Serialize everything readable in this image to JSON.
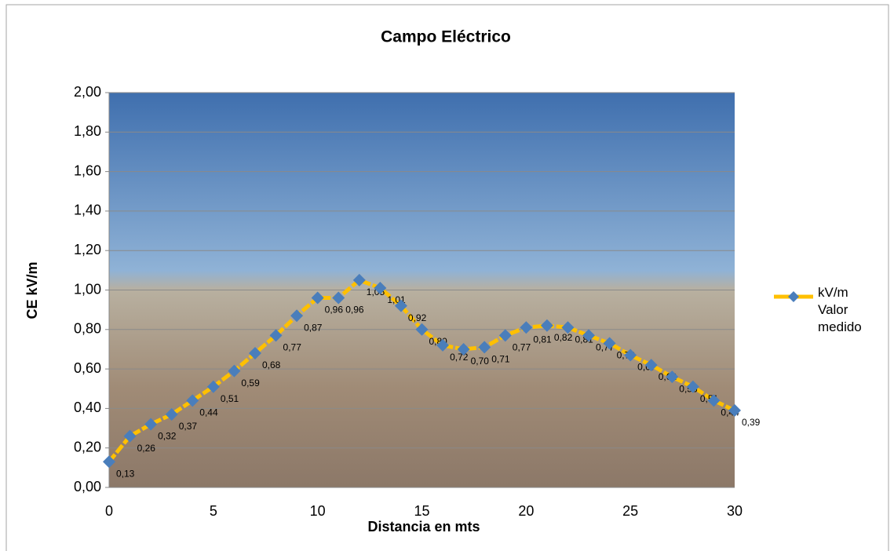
{
  "chart_data": {
    "type": "line",
    "title": "Campo Eléctrico",
    "x_label": "Distancia en mts",
    "y_label": "CE kV/m",
    "x": [
      0,
      1,
      2,
      3,
      4,
      5,
      6,
      7,
      8,
      9,
      10,
      11,
      12,
      13,
      14,
      15,
      16,
      17,
      18,
      19,
      20,
      21,
      22,
      23,
      24,
      25,
      26,
      27,
      28,
      29,
      30
    ],
    "series": [
      {
        "name": "kV/m Valor medido",
        "color": "#FFC000",
        "marker_color": "#4A7EBB",
        "values": [
          0.13,
          0.26,
          0.32,
          0.37,
          0.44,
          0.51,
          0.59,
          0.68,
          0.77,
          0.87,
          0.96,
          0.96,
          1.05,
          1.01,
          0.92,
          0.8,
          0.72,
          0.7,
          0.71,
          0.77,
          0.81,
          0.82,
          0.81,
          0.77,
          0.73,
          0.67,
          0.62,
          0.56,
          0.51,
          0.44,
          0.39
        ],
        "value_labels": [
          "0,13",
          "0,26",
          "0,32",
          "0,37",
          "0,44",
          "0,51",
          "0,59",
          "0,68",
          "0,77",
          "0,87",
          "0,96",
          "0,96",
          "1,05",
          "1,01",
          "0,92",
          "0,80",
          "0,72",
          "0,70",
          "0,71",
          "0,77",
          "0,81",
          "0,82",
          "0,81",
          "0,77",
          "0,73",
          "0,67",
          "0,62",
          "0,56",
          "0,51",
          "0,44",
          "0,39"
        ]
      }
    ],
    "xlim": [
      0,
      30
    ],
    "xticks": [
      0,
      5,
      10,
      15,
      20,
      25,
      30
    ],
    "ylim": [
      0,
      2
    ],
    "yticks": [
      {
        "value": 0,
        "label": "0,00"
      },
      {
        "value": 0.2,
        "label": "0,20"
      },
      {
        "value": 0.4,
        "label": "0,40"
      },
      {
        "value": 0.6,
        "label": "0,60"
      },
      {
        "value": 0.8,
        "label": "0,80"
      },
      {
        "value": 1,
        "label": "1,00"
      },
      {
        "value": 1.2,
        "label": "1,20"
      },
      {
        "value": 1.4,
        "label": "1,40"
      },
      {
        "value": 1.6,
        "label": "1,60"
      },
      {
        "value": 1.8,
        "label": "1,80"
      },
      {
        "value": 2,
        "label": "2,00"
      }
    ],
    "grid": true,
    "legend": "right"
  }
}
